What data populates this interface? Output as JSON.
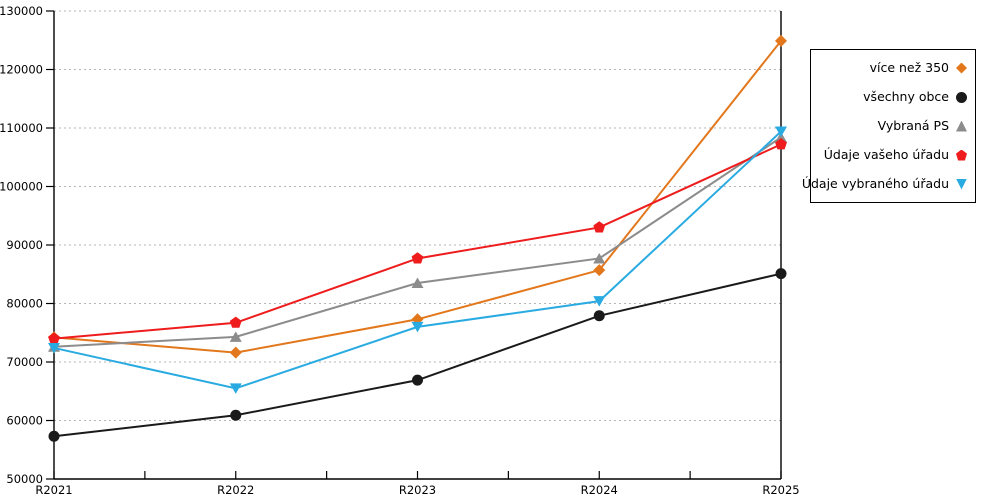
{
  "chart_data": {
    "type": "line",
    "title": "",
    "xlabel": "",
    "ylabel": "",
    "categories": [
      "R2021",
      "R2022",
      "R2023",
      "R2024",
      "R2025"
    ],
    "series": [
      {
        "name": "více než 350",
        "color": "#E2771C",
        "marker": "diamond",
        "values": [
          74200,
          71600,
          77300,
          85700,
          124900
        ]
      },
      {
        "name": "všechny obce",
        "color": "#1A1A1A",
        "marker": "circle",
        "values": [
          57300,
          60900,
          66900,
          77900,
          85100
        ]
      },
      {
        "name": "Vybraná PS",
        "color": "#8C8C8C",
        "marker": "triangle-up",
        "values": [
          72600,
          74300,
          83500,
          87700,
          108400
        ]
      },
      {
        "name": "Údaje vašeho úřadu",
        "color": "#EE1C1C",
        "marker": "pentagon",
        "values": [
          74000,
          76700,
          87700,
          93000,
          107200
        ]
      },
      {
        "name": "Údaje vybraného úřadu",
        "color": "#29ABE2",
        "marker": "triangle-down",
        "values": [
          72400,
          65500,
          76000,
          80400,
          109400
        ]
      }
    ],
    "ylim": [
      50000,
      130000
    ],
    "ytick_step": 10000,
    "ytick_labels": [
      "50000",
      "60000",
      "70000",
      "80000",
      "90000",
      "100000",
      "110000",
      "120000",
      "130000"
    ],
    "grid": "horizontal-dotted",
    "grid_color": "#B5B5B5",
    "axis_color": "#000000",
    "legend_position": "right-outside"
  }
}
